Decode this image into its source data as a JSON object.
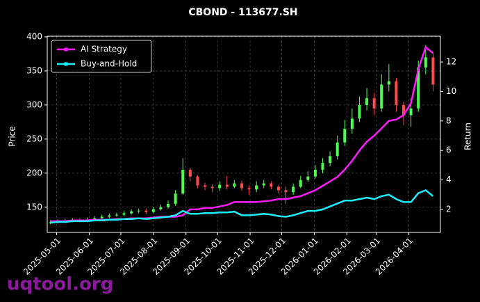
{
  "chart_data": {
    "type": "candlestick",
    "title": "CBOND - 113677.SH",
    "watermark": "uqtool.org",
    "ylabel": "Price",
    "y2label": "Return",
    "x": [
      "2025-04-25",
      "2025-05-02",
      "2025-05-09",
      "2025-05-16",
      "2025-05-23",
      "2025-05-30",
      "2025-06-06",
      "2025-06-13",
      "2025-06-20",
      "2025-06-27",
      "2025-07-04",
      "2025-07-11",
      "2025-07-18",
      "2025-07-25",
      "2025-08-01",
      "2025-08-08",
      "2025-08-15",
      "2025-08-22",
      "2025-08-29",
      "2025-09-05",
      "2025-09-12",
      "2025-09-19",
      "2025-09-26",
      "2025-10-03",
      "2025-10-10",
      "2025-10-17",
      "2025-10-24",
      "2025-10-31",
      "2025-11-07",
      "2025-11-14",
      "2025-11-21",
      "2025-11-28",
      "2025-12-05",
      "2025-12-12",
      "2025-12-19",
      "2025-12-26",
      "2026-01-02",
      "2026-01-09",
      "2026-01-16",
      "2026-01-23",
      "2026-01-30",
      "2026-02-06",
      "2026-02-13",
      "2026-02-20",
      "2026-02-27",
      "2026-03-06",
      "2026-03-13",
      "2026-03-20",
      "2026-03-27",
      "2026-04-03",
      "2026-04-10",
      "2026-04-17",
      "2026-04-24"
    ],
    "open": [
      127,
      128,
      129,
      130,
      131,
      130,
      132,
      134,
      136,
      138,
      139,
      141,
      144,
      145,
      143,
      147,
      150,
      155,
      170,
      205,
      195,
      182,
      180,
      178,
      183,
      180,
      185,
      178,
      176,
      182,
      185,
      180,
      175,
      172,
      180,
      190,
      195,
      205,
      215,
      225,
      245,
      265,
      280,
      300,
      310,
      295,
      330,
      335,
      300,
      285,
      295,
      355,
      370
    ],
    "high": [
      131,
      132,
      133,
      134,
      134,
      135,
      137,
      139,
      141,
      142,
      144,
      147,
      148,
      148,
      150,
      154,
      160,
      175,
      222,
      208,
      197,
      186,
      184,
      188,
      196,
      190,
      189,
      182,
      188,
      190,
      188,
      183,
      180,
      185,
      196,
      203,
      212,
      222,
      232,
      255,
      278,
      295,
      312,
      325,
      318,
      345,
      360,
      340,
      305,
      310,
      365,
      388,
      378
    ],
    "low": [
      125,
      126,
      127,
      128,
      128,
      128,
      131,
      132,
      134,
      136,
      137,
      139,
      141,
      140,
      141,
      145,
      148,
      152,
      168,
      188,
      178,
      175,
      172,
      174,
      176,
      178,
      174,
      168,
      172,
      178,
      176,
      170,
      155,
      168,
      178,
      187,
      192,
      200,
      210,
      220,
      240,
      258,
      275,
      292,
      285,
      290,
      320,
      290,
      270,
      268,
      290,
      345,
      320
    ],
    "close": [
      128,
      129,
      130,
      131,
      130,
      132,
      134,
      136,
      138,
      139,
      141,
      144,
      145,
      143,
      147,
      150,
      155,
      170,
      205,
      195,
      182,
      180,
      178,
      183,
      180,
      185,
      178,
      176,
      182,
      185,
      180,
      175,
      172,
      180,
      190,
      195,
      205,
      215,
      225,
      245,
      265,
      280,
      300,
      310,
      295,
      330,
      335,
      300,
      285,
      295,
      355,
      370,
      330
    ],
    "up_color": "#4cff4c",
    "down_color": "#ff4a4a",
    "series": [
      {
        "name": "AI Strategy",
        "color": "#ff1aff",
        "axis": "y2",
        "values": [
          1.2,
          1.2,
          1.2,
          1.25,
          1.25,
          1.25,
          1.3,
          1.3,
          1.3,
          1.35,
          1.35,
          1.4,
          1.4,
          1.4,
          1.45,
          1.5,
          1.5,
          1.5,
          1.6,
          2.0,
          2.0,
          2.1,
          2.1,
          2.2,
          2.3,
          2.5,
          2.5,
          2.5,
          2.5,
          2.55,
          2.6,
          2.7,
          2.7,
          2.8,
          2.9,
          3.1,
          3.3,
          3.6,
          3.9,
          4.2,
          4.7,
          5.3,
          6.0,
          6.6,
          7.0,
          7.5,
          8.0,
          8.1,
          8.4,
          9.2,
          11.5,
          13.0,
          12.6
        ]
      },
      {
        "name": "Buy-and-Hold",
        "color": "#1af0ff",
        "axis": "y2",
        "values": [
          1.1,
          1.15,
          1.15,
          1.2,
          1.2,
          1.2,
          1.25,
          1.25,
          1.3,
          1.3,
          1.35,
          1.35,
          1.4,
          1.35,
          1.4,
          1.45,
          1.5,
          1.6,
          1.9,
          1.7,
          1.7,
          1.75,
          1.75,
          1.8,
          1.8,
          1.85,
          1.6,
          1.6,
          1.65,
          1.7,
          1.65,
          1.55,
          1.5,
          1.6,
          1.75,
          1.9,
          1.9,
          2.0,
          2.2,
          2.4,
          2.6,
          2.6,
          2.7,
          2.8,
          2.7,
          2.9,
          3.0,
          2.7,
          2.5,
          2.5,
          3.1,
          3.3,
          2.9
        ]
      }
    ],
    "xlim": [
      "2025-04-22",
      "2026-05-01"
    ],
    "xticks": [
      "2025-05-01",
      "2025-06-01",
      "2025-07-01",
      "2025-08-01",
      "2025-09-01",
      "2025-10-01",
      "2025-11-01",
      "2025-12-01",
      "2026-01-01",
      "2026-02-01",
      "2026-03-01",
      "2026-04-01"
    ],
    "ylim": [
      113,
      401
    ],
    "yticks": [
      150,
      200,
      250,
      300,
      350,
      400
    ],
    "y2lim": [
      0.44,
      13.75
    ],
    "y2ticks": [
      2,
      4,
      6,
      8,
      10,
      12
    ],
    "grid": true,
    "legend": "upper left"
  }
}
